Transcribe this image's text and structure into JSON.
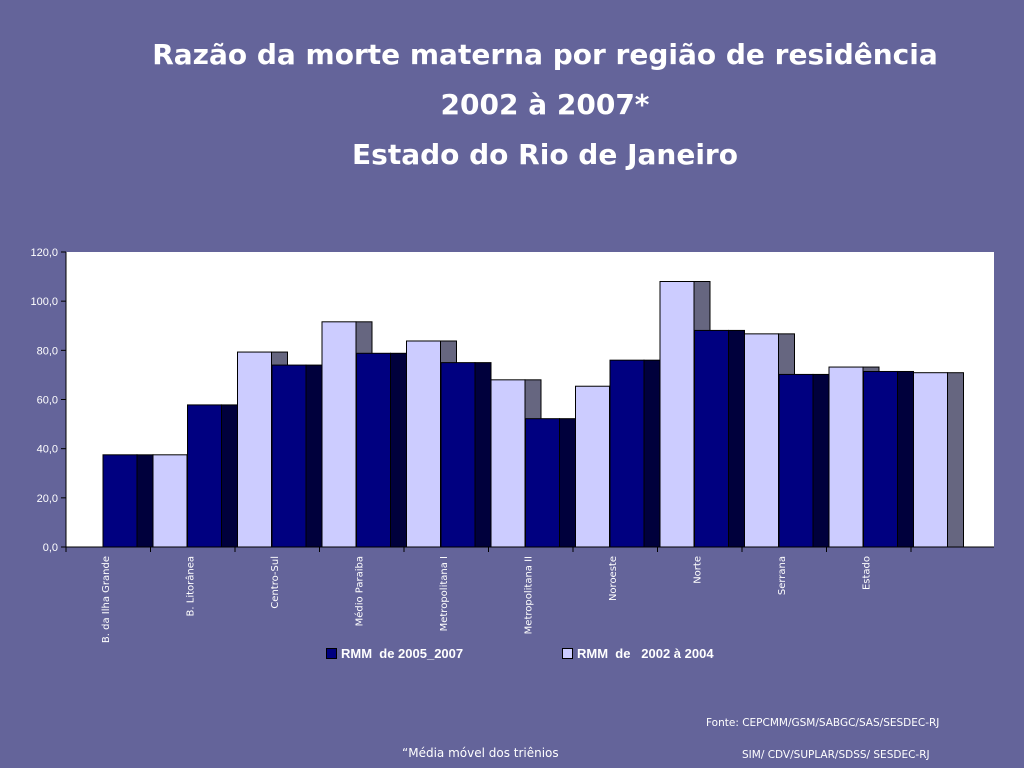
{
  "title": {
    "line1": "Razão da morte materna por região de residência",
    "line2": "2002 à 2007*",
    "line3": "Estado do Rio de Janeiro"
  },
  "chart_data": {
    "type": "bar",
    "categories": [
      "B. da Ilha Grande",
      "B. Litorânea",
      "Centro-Sul",
      "Médio Paraiba",
      "Metropolitana I",
      "Metropolitana II",
      "Noroeste",
      "Norte",
      "Serrana",
      "Estado"
    ],
    "series": [
      {
        "name": "RMM  de 2005_2007",
        "color": "#000080",
        "values": [
          37.5,
          57.8,
          74.0,
          78.8,
          75.0,
          52.2,
          76.0,
          88.1,
          70.2,
          71.4
        ]
      },
      {
        "name": "RMM  de   2002 à 2004",
        "color": "#ccccff",
        "values": [
          37.5,
          79.3,
          91.6,
          83.8,
          68.0,
          65.4,
          108.0,
          86.7,
          73.2,
          70.9
        ]
      }
    ],
    "ylim": [
      0,
      120
    ],
    "yticks": [
      "0,0",
      "20,0",
      "40,0",
      "60,0",
      "80,0",
      "100,0",
      "120,0"
    ],
    "grid": false,
    "legend_position": "bottom"
  },
  "source": {
    "line1": "Fonte: CEPCMM/GSM/SABGC/SAS/SESDEC-RJ",
    "line2": "SIM/ CDV/SUPLAR/SDSS/ SESDEC-RJ"
  },
  "footnote": "“Média móvel dos triênios"
}
